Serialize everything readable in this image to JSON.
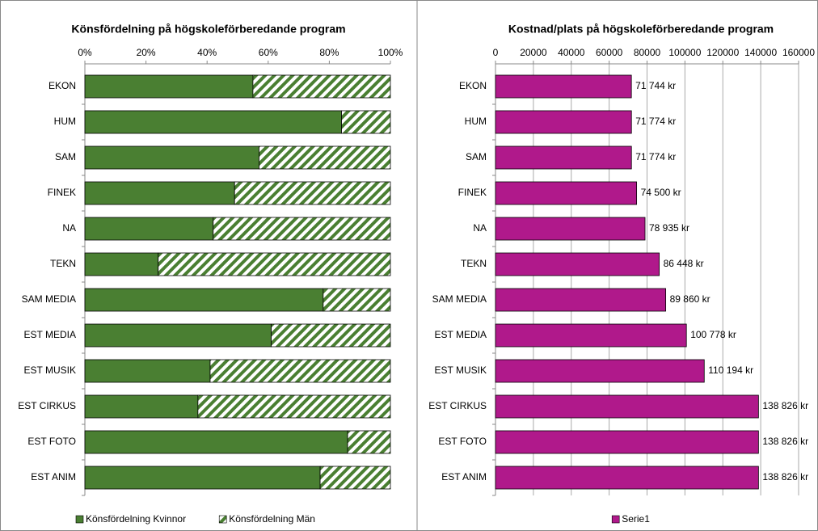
{
  "chart_data": [
    {
      "type": "bar",
      "stacked": true,
      "title": "Könsfördelning på högskoleförberedande program",
      "categories": [
        "EKON",
        "HUM",
        "SAM",
        "FINEK",
        "NA",
        "TEKN",
        "SAM MEDIA",
        "EST MEDIA",
        "EST MUSIK",
        "EST CIRKUS",
        "EST FOTO",
        "EST ANIM"
      ],
      "series": [
        {
          "name": "Könsfördelning Kvinnor",
          "color": "#4a7f32",
          "values": [
            55,
            84,
            57,
            49,
            42,
            24,
            78,
            61,
            41,
            37,
            86,
            77
          ]
        },
        {
          "name": "Könsfördelning Män",
          "color": "#4a7f32",
          "fill_pattern": "hatch",
          "values": [
            45,
            16,
            43,
            51,
            58,
            76,
            22,
            39,
            59,
            63,
            14,
            23
          ]
        }
      ],
      "xlim": [
        0,
        100
      ],
      "xticks": [
        {
          "value": 0,
          "label": "0%"
        },
        {
          "value": 20,
          "label": "20%"
        },
        {
          "value": 40,
          "label": "40%"
        },
        {
          "value": 60,
          "label": "60%"
        },
        {
          "value": 80,
          "label": "80%"
        },
        {
          "value": 100,
          "label": "100%"
        }
      ],
      "grid": false,
      "legend": "bottom"
    },
    {
      "type": "bar",
      "title": "Kostnad/plats på högskoleförberedande program",
      "categories": [
        "EKON",
        "HUM",
        "SAM",
        "FINEK",
        "NA",
        "TEKN",
        "SAM MEDIA",
        "EST MEDIA",
        "EST MUSIK",
        "EST CIRKUS",
        "EST FOTO",
        "EST ANIM"
      ],
      "series": [
        {
          "name": "Serie1",
          "color": "#b0198b",
          "values": [
            71744,
            71774,
            71774,
            74500,
            78935,
            86448,
            89860,
            100778,
            110194,
            138826,
            138826,
            138826
          ],
          "value_labels": [
            "71 744 kr",
            "71 774 kr",
            "71 774 kr",
            "74 500 kr",
            "78 935 kr",
            "86 448 kr",
            "89 860 kr",
            "100 778 kr",
            "110 194 kr",
            "138 826 kr",
            "138 826 kr",
            "138 826 kr"
          ]
        }
      ],
      "xlim": [
        0,
        160000
      ],
      "xticks": [
        0,
        20000,
        40000,
        60000,
        80000,
        100000,
        120000,
        140000,
        160000
      ],
      "grid": true,
      "legend": "bottom"
    }
  ]
}
